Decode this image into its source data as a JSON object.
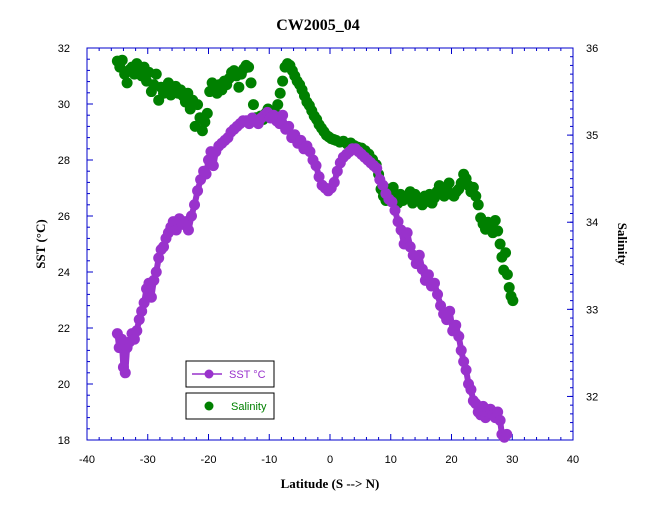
{
  "chart_data": {
    "type": "scatter",
    "title": "CW2005_04",
    "xlabel": "Latitude (S --> N)",
    "ylabel": "SST (°C)",
    "y2label": "Salinity",
    "xlim": [
      -40,
      40
    ],
    "ylim": [
      18,
      32
    ],
    "y2lim": [
      31.5,
      36
    ],
    "x_ticks": [
      "-40",
      "-30",
      "-20",
      "-10",
      "0",
      "10",
      "20",
      "30",
      "40"
    ],
    "y_ticks": [
      "18",
      "20",
      "22",
      "24",
      "26",
      "28",
      "30",
      "32"
    ],
    "y2_ticks": [
      "32",
      "33",
      "34",
      "35",
      "36"
    ],
    "grid": false,
    "legend_position": "lower-left",
    "series": [
      {
        "name": "SST °C",
        "axis": "left",
        "color": "#9932cc",
        "marker": "line-circle",
        "points": [
          [
            -35,
            21.8
          ],
          [
            -34.7,
            21.3
          ],
          [
            -34.3,
            21.6
          ],
          [
            -34,
            20.6
          ],
          [
            -33.7,
            20.4
          ],
          [
            -33.4,
            21.3
          ],
          [
            -33,
            21.5
          ],
          [
            -32.6,
            21.8
          ],
          [
            -32.2,
            21.6
          ],
          [
            -31.8,
            21.9
          ],
          [
            -31.4,
            22.3
          ],
          [
            -31,
            22.6
          ],
          [
            -30.6,
            22.9
          ],
          [
            -30.2,
            23.4
          ],
          [
            -29.8,
            23.6
          ],
          [
            -29.4,
            23.1
          ],
          [
            -29,
            23.7
          ],
          [
            -28.6,
            24.0
          ],
          [
            -28.2,
            24.5
          ],
          [
            -27.8,
            24.8
          ],
          [
            -27.4,
            24.9
          ],
          [
            -27,
            25.2
          ],
          [
            -26.6,
            25.4
          ],
          [
            -26.2,
            25.6
          ],
          [
            -25.8,
            25.8
          ],
          [
            -25.3,
            25.5
          ],
          [
            -24.8,
            25.9
          ],
          [
            -24.3,
            25.7
          ],
          [
            -23.8,
            25.8
          ],
          [
            -23.3,
            25.5
          ],
          [
            -22.8,
            26.0
          ],
          [
            -22.3,
            26.4
          ],
          [
            -21.8,
            26.9
          ],
          [
            -21.3,
            27.3
          ],
          [
            -20.8,
            27.6
          ],
          [
            -20.4,
            27.5
          ],
          [
            -20,
            28.0
          ],
          [
            -19.6,
            28.3
          ],
          [
            -19.2,
            27.8
          ],
          [
            -18.8,
            28.3
          ],
          [
            -18.3,
            28.5
          ],
          [
            -17.8,
            28.6
          ],
          [
            -17.3,
            28.7
          ],
          [
            -16.8,
            28.8
          ],
          [
            -16.3,
            29.0
          ],
          [
            -15.8,
            29.1
          ],
          [
            -15.3,
            29.2
          ],
          [
            -14.8,
            29.3
          ],
          [
            -14.3,
            29.4
          ],
          [
            -13.8,
            29.4
          ],
          [
            -13.3,
            29.3
          ],
          [
            -12.8,
            29.5
          ],
          [
            -12.3,
            29.4
          ],
          [
            -11.8,
            29.3
          ],
          [
            -11.3,
            29.5
          ],
          [
            -10.8,
            29.6
          ],
          [
            -10.3,
            29.7
          ],
          [
            -9.8,
            29.5
          ],
          [
            -9.3,
            29.6
          ],
          [
            -8.8,
            29.4
          ],
          [
            -8.3,
            29.3
          ],
          [
            -7.8,
            29.6
          ],
          [
            -7.3,
            29.1
          ],
          [
            -6.8,
            29.2
          ],
          [
            -6.3,
            28.8
          ],
          [
            -5.8,
            28.9
          ],
          [
            -5.3,
            28.6
          ],
          [
            -4.8,
            28.7
          ],
          [
            -4.3,
            28.4
          ],
          [
            -3.8,
            28.5
          ],
          [
            -3.3,
            28.3
          ],
          [
            -2.8,
            28.0
          ],
          [
            -2.3,
            27.8
          ],
          [
            -1.8,
            27.4
          ],
          [
            -1.3,
            27.1
          ],
          [
            -0.8,
            27.0
          ],
          [
            -0.3,
            26.9
          ],
          [
            0.2,
            27.0
          ],
          [
            0.7,
            27.2
          ],
          [
            1.2,
            27.6
          ],
          [
            1.7,
            27.9
          ],
          [
            2.2,
            28.1
          ],
          [
            2.7,
            28.2
          ],
          [
            3.2,
            28.3
          ],
          [
            3.7,
            28.4
          ],
          [
            4.2,
            28.4
          ],
          [
            4.7,
            28.3
          ],
          [
            5.2,
            28.2
          ],
          [
            5.7,
            28.1
          ],
          [
            6.2,
            28.0
          ],
          [
            6.7,
            27.9
          ],
          [
            7.2,
            27.8
          ],
          [
            7.7,
            27.7
          ],
          [
            8.2,
            27.3
          ],
          [
            8.7,
            27.1
          ],
          [
            9.2,
            26.8
          ],
          [
            9.7,
            26.6
          ],
          [
            10.2,
            26.5
          ],
          [
            10.7,
            26.2
          ],
          [
            11.2,
            25.8
          ],
          [
            11.7,
            25.5
          ],
          [
            12.2,
            25.0
          ],
          [
            12.7,
            25.4
          ],
          [
            13.2,
            24.9
          ],
          [
            13.7,
            24.6
          ],
          [
            14.2,
            24.3
          ],
          [
            14.7,
            24.6
          ],
          [
            15.2,
            24.1
          ],
          [
            15.7,
            23.7
          ],
          [
            16.2,
            23.9
          ],
          [
            16.7,
            23.5
          ],
          [
            17.2,
            23.6
          ],
          [
            17.7,
            23.2
          ],
          [
            18.2,
            22.8
          ],
          [
            18.7,
            22.5
          ],
          [
            19.2,
            22.3
          ],
          [
            19.7,
            22.6
          ],
          [
            20.2,
            21.9
          ],
          [
            20.7,
            22.1
          ],
          [
            21.2,
            21.7
          ],
          [
            21.6,
            21.2
          ],
          [
            22,
            20.8
          ],
          [
            22.4,
            20.5
          ],
          [
            22.8,
            20.0
          ],
          [
            23.2,
            19.8
          ],
          [
            23.6,
            19.4
          ],
          [
            24,
            19.3
          ],
          [
            24.4,
            19.0
          ],
          [
            24.8,
            18.9
          ],
          [
            25.2,
            19.2
          ],
          [
            25.6,
            18.8
          ],
          [
            26,
            19.0
          ],
          [
            26.4,
            19.1
          ],
          [
            26.8,
            18.9
          ],
          [
            27.2,
            18.8
          ],
          [
            27.6,
            19.0
          ],
          [
            28,
            18.7
          ],
          [
            28.3,
            18.2
          ],
          [
            28.7,
            18.1
          ],
          [
            29.1,
            18.2
          ]
        ]
      },
      {
        "name": "Salinity",
        "axis": "right",
        "color": "#008000",
        "marker": "circle",
        "points": [
          [
            -35,
            35.85
          ],
          [
            -34.6,
            35.78
          ],
          [
            -34.2,
            35.86
          ],
          [
            -33.8,
            35.7
          ],
          [
            -33.4,
            35.6
          ],
          [
            -33,
            35.75
          ],
          [
            -32.6,
            35.78
          ],
          [
            -32.2,
            35.7
          ],
          [
            -31.8,
            35.82
          ],
          [
            -31.4,
            35.76
          ],
          [
            -31,
            35.68
          ],
          [
            -30.6,
            35.78
          ],
          [
            -30.2,
            35.62
          ],
          [
            -29.8,
            35.72
          ],
          [
            -29.4,
            35.5
          ],
          [
            -29,
            35.58
          ],
          [
            -28.6,
            35.7
          ],
          [
            -28.2,
            35.4
          ],
          [
            -27.8,
            35.55
          ],
          [
            -27.4,
            35.48
          ],
          [
            -27,
            35.52
          ],
          [
            -26.6,
            35.6
          ],
          [
            -26.2,
            35.46
          ],
          [
            -25.8,
            35.5
          ],
          [
            -25.4,
            35.56
          ],
          [
            -25,
            35.48
          ],
          [
            -24.6,
            35.52
          ],
          [
            -24.2,
            35.45
          ],
          [
            -23.8,
            35.38
          ],
          [
            -23.4,
            35.48
          ],
          [
            -23,
            35.3
          ],
          [
            -22.6,
            35.4
          ],
          [
            -22.2,
            35.1
          ],
          [
            -21.8,
            35.35
          ],
          [
            -21.4,
            35.2
          ],
          [
            -21,
            35.05
          ],
          [
            -20.6,
            35.15
          ],
          [
            -20.2,
            35.25
          ],
          [
            -19.8,
            35.5
          ],
          [
            -19.4,
            35.6
          ],
          [
            -19,
            35.56
          ],
          [
            -18.6,
            35.48
          ],
          [
            -18.2,
            35.58
          ],
          [
            -17.8,
            35.52
          ],
          [
            -17.4,
            35.62
          ],
          [
            -17,
            35.58
          ],
          [
            -16.6,
            35.65
          ],
          [
            -16.2,
            35.72
          ],
          [
            -15.8,
            35.74
          ],
          [
            -15.4,
            35.68
          ],
          [
            -15,
            35.55
          ],
          [
            -14.6,
            35.7
          ],
          [
            -14.2,
            35.76
          ],
          [
            -13.8,
            35.8
          ],
          [
            -13.4,
            35.78
          ],
          [
            -13,
            35.6
          ],
          [
            -12.6,
            35.35
          ],
          [
            -12.2,
            35.2
          ],
          [
            -11.8,
            35.15
          ],
          [
            -11.4,
            35.22
          ],
          [
            -11,
            35.18
          ],
          [
            -10.6,
            35.25
          ],
          [
            -10.2,
            35.3
          ],
          [
            -9.8,
            35.28
          ],
          [
            -9.4,
            35.26
          ],
          [
            -9,
            35.25
          ],
          [
            -8.6,
            35.35
          ],
          [
            -8.2,
            35.48
          ],
          [
            -7.8,
            35.62
          ],
          [
            -7.4,
            35.78
          ],
          [
            -7,
            35.82
          ],
          [
            -6.6,
            35.8
          ],
          [
            -6.2,
            35.74
          ],
          [
            -5.8,
            35.68
          ],
          [
            -5.4,
            35.62
          ],
          [
            -5,
            35.58
          ],
          [
            -4.6,
            35.52
          ],
          [
            -4.2,
            35.45
          ],
          [
            -3.8,
            35.38
          ],
          [
            -3.4,
            35.34
          ],
          [
            -3,
            35.28
          ],
          [
            -2.6,
            35.22
          ],
          [
            -2.2,
            35.18
          ],
          [
            -1.8,
            35.12
          ],
          [
            -1.4,
            35.08
          ],
          [
            -1,
            35.04
          ],
          [
            -0.6,
            35.0
          ],
          [
            -0.2,
            34.98
          ],
          [
            0.2,
            34.96
          ],
          [
            0.6,
            34.95
          ],
          [
            1,
            34.94
          ],
          [
            1.6,
            34.92
          ],
          [
            2.2,
            34.93
          ],
          [
            2.8,
            34.9
          ],
          [
            3.4,
            34.91
          ],
          [
            4,
            34.88
          ],
          [
            4.6,
            34.86
          ],
          [
            5.2,
            34.85
          ],
          [
            5.8,
            34.82
          ],
          [
            6.4,
            34.78
          ],
          [
            7,
            34.72
          ],
          [
            7.6,
            34.66
          ],
          [
            8,
            34.55
          ],
          [
            8.4,
            34.38
          ],
          [
            8.8,
            34.3
          ],
          [
            9.2,
            34.25
          ],
          [
            9.6,
            34.38
          ],
          [
            10,
            34.3
          ],
          [
            10.4,
            34.4
          ],
          [
            10.8,
            34.28
          ],
          [
            11.2,
            34.22
          ],
          [
            11.6,
            34.32
          ],
          [
            12,
            34.25
          ],
          [
            12.4,
            34.3
          ],
          [
            12.8,
            34.28
          ],
          [
            13.2,
            34.35
          ],
          [
            13.6,
            34.22
          ],
          [
            14,
            34.32
          ],
          [
            14.4,
            34.28
          ],
          [
            14.8,
            34.26
          ],
          [
            15.2,
            34.2
          ],
          [
            15.6,
            34.3
          ],
          [
            16,
            34.24
          ],
          [
            16.4,
            34.32
          ],
          [
            16.8,
            34.22
          ],
          [
            17.2,
            34.28
          ],
          [
            17.6,
            34.35
          ],
          [
            18,
            34.42
          ],
          [
            18.4,
            34.38
          ],
          [
            18.8,
            34.3
          ],
          [
            19.2,
            34.4
          ],
          [
            19.6,
            34.45
          ],
          [
            20,
            34.32
          ],
          [
            20.4,
            34.3
          ],
          [
            20.8,
            34.35
          ],
          [
            21.2,
            34.38
          ],
          [
            21.6,
            34.45
          ],
          [
            22,
            34.55
          ],
          [
            22.4,
            34.5
          ],
          [
            22.8,
            34.42
          ],
          [
            23.2,
            34.35
          ],
          [
            23.6,
            34.4
          ],
          [
            24,
            34.3
          ],
          [
            24.4,
            34.2
          ],
          [
            24.8,
            34.05
          ],
          [
            25.2,
            33.98
          ],
          [
            25.6,
            33.92
          ],
          [
            26,
            34.0
          ],
          [
            26.4,
            33.96
          ],
          [
            26.8,
            33.88
          ],
          [
            27.2,
            34.02
          ],
          [
            27.6,
            33.9
          ],
          [
            28,
            33.75
          ],
          [
            28.3,
            33.6
          ],
          [
            28.6,
            33.45
          ],
          [
            28.9,
            33.65
          ],
          [
            29.2,
            33.4
          ],
          [
            29.5,
            33.25
          ],
          [
            29.8,
            33.15
          ],
          [
            30.1,
            33.1
          ]
        ]
      }
    ]
  }
}
